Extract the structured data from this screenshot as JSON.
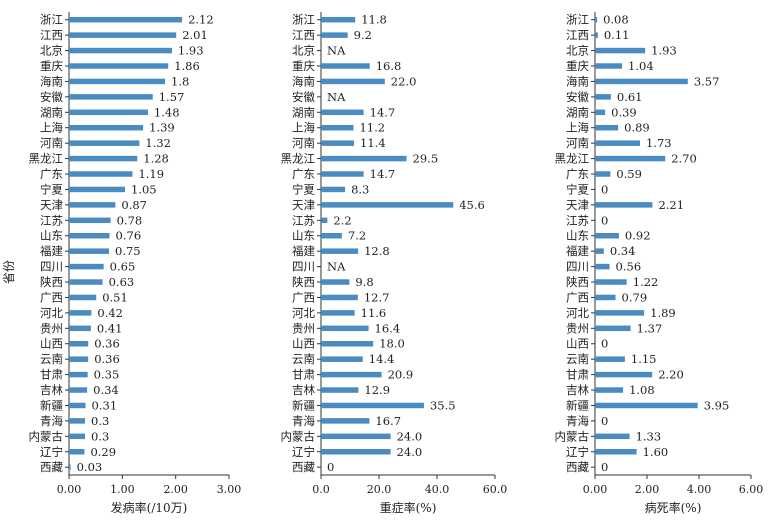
{
  "chart_data": [
    {
      "type": "bar",
      "orientation": "horizontal",
      "ylabel": "省份",
      "xlabel": "发病率(/10万)",
      "xlim": [
        0,
        3
      ],
      "xticks": [
        "0.00",
        "1.00",
        "2.00",
        "3.00"
      ],
      "categories": [
        "浙江",
        "江西",
        "北京",
        "重庆",
        "海南",
        "安徽",
        "湖南",
        "上海",
        "河南",
        "黑龙江",
        "广东",
        "宁夏",
        "天津",
        "江苏",
        "山东",
        "福建",
        "四川",
        "陕西",
        "广西",
        "河北",
        "贵州",
        "山西",
        "云南",
        "甘肃",
        "吉林",
        "新疆",
        "青海",
        "内蒙古",
        "辽宁",
        "西藏"
      ],
      "values": [
        2.12,
        2.01,
        1.93,
        1.86,
        1.8,
        1.57,
        1.48,
        1.39,
        1.32,
        1.28,
        1.19,
        1.05,
        0.87,
        0.78,
        0.76,
        0.75,
        0.65,
        0.63,
        0.51,
        0.42,
        0.41,
        0.36,
        0.36,
        0.35,
        0.34,
        0.31,
        0.3,
        0.3,
        0.29,
        0.03
      ],
      "value_labels": [
        "2.12",
        "2.01",
        "1.93",
        "1.86",
        "1.8",
        "1.57",
        "1.48",
        "1.39",
        "1.32",
        "1.28",
        "1.19",
        "1.05",
        "0.87",
        "0.78",
        "0.76",
        "0.75",
        "0.65",
        "0.63",
        "0.51",
        "0.42",
        "0.41",
        "0.36",
        "0.36",
        "0.35",
        "0.34",
        "0.31",
        "0.3",
        "0.3",
        "0.29",
        "0.03"
      ],
      "bar_color": "#4a8cc2"
    },
    {
      "type": "bar",
      "orientation": "horizontal",
      "xlabel": "重症率(%)",
      "xlim": [
        0,
        60
      ],
      "xticks": [
        "0.0",
        "20.0",
        "40.0",
        "60.0"
      ],
      "categories": [
        "浙江",
        "江西",
        "北京",
        "重庆",
        "海南",
        "安徽",
        "湖南",
        "上海",
        "河南",
        "黑龙江",
        "广东",
        "宁夏",
        "天津",
        "江苏",
        "山东",
        "福建",
        "四川",
        "陕西",
        "广西",
        "河北",
        "贵州",
        "山西",
        "云南",
        "甘肃",
        "吉林",
        "新疆",
        "青海",
        "内蒙古",
        "辽宁",
        "西藏"
      ],
      "values": [
        11.8,
        9.2,
        null,
        16.8,
        22.0,
        null,
        14.7,
        11.2,
        11.4,
        29.5,
        14.7,
        8.3,
        45.6,
        2.2,
        7.2,
        12.8,
        null,
        9.8,
        12.7,
        11.6,
        16.4,
        18.0,
        14.4,
        20.9,
        12.9,
        35.5,
        16.7,
        24.0,
        24.0,
        0
      ],
      "value_labels": [
        "11.8",
        "9.2",
        "NA",
        "16.8",
        "22.0",
        "NA",
        "14.7",
        "11.2",
        "11.4",
        "29.5",
        "14.7",
        "8.3",
        "45.6",
        "2.2",
        "7.2",
        "12.8",
        "NA",
        "9.8",
        "12.7",
        "11.6",
        "16.4",
        "18.0",
        "14.4",
        "20.9",
        "12.9",
        "35.5",
        "16.7",
        "24.0",
        "24.0",
        "0"
      ],
      "bar_color": "#4a8cc2"
    },
    {
      "type": "bar",
      "orientation": "horizontal",
      "xlabel": "病死率(%)",
      "xlim": [
        0,
        6
      ],
      "xticks": [
        "0.00",
        "2.00",
        "4.00",
        "6.00"
      ],
      "categories": [
        "浙江",
        "江西",
        "北京",
        "重庆",
        "海南",
        "安徽",
        "湖南",
        "上海",
        "河南",
        "黑龙江",
        "广东",
        "宁夏",
        "天津",
        "江苏",
        "山东",
        "福建",
        "四川",
        "陕西",
        "广西",
        "河北",
        "贵州",
        "山西",
        "云南",
        "甘肃",
        "吉林",
        "新疆",
        "青海",
        "内蒙古",
        "辽宁",
        "西藏"
      ],
      "values": [
        0.08,
        0.11,
        1.93,
        1.04,
        3.57,
        0.61,
        0.39,
        0.89,
        1.73,
        2.7,
        0.59,
        0,
        2.21,
        0,
        0.92,
        0.34,
        0.56,
        1.22,
        0.79,
        1.89,
        1.37,
        0,
        1.15,
        2.2,
        1.08,
        3.95,
        0,
        1.33,
        1.6,
        0
      ],
      "value_labels": [
        "0.08",
        "0.11",
        "1.93",
        "1.04",
        "3.57",
        "0.61",
        "0.39",
        "0.89",
        "1.73",
        "2.70",
        "0.59",
        "0",
        "2.21",
        "0",
        "0.92",
        "0.34",
        "0.56",
        "1.22",
        "0.79",
        "1.89",
        "1.37",
        "0",
        "1.15",
        "2.20",
        "1.08",
        "3.95",
        "0",
        "1.33",
        "1.60",
        "0"
      ],
      "bar_color": "#4a8cc2"
    }
  ]
}
